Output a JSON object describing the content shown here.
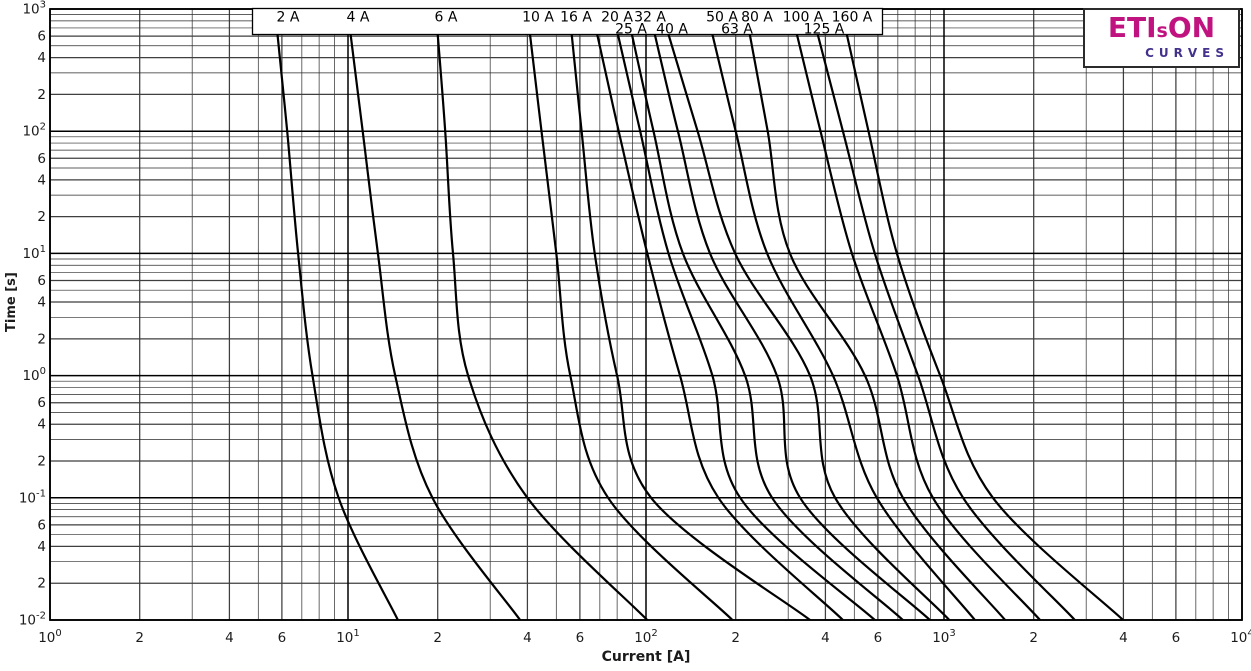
{
  "chart_data": {
    "type": "line",
    "title": "",
    "xlabel": "Current [A]",
    "ylabel": "Time [s]",
    "xscale": "log",
    "yscale": "log",
    "xlim": [
      1,
      10000
    ],
    "ylim": [
      0.01,
      1000
    ],
    "grid": true,
    "legend_position": "top-box",
    "series": [
      {
        "name": "2 A",
        "points_I_t": [
          [
            5.8,
            620
          ],
          [
            6.25,
            100
          ],
          [
            6.8,
            10
          ],
          [
            7.6,
            1
          ],
          [
            9.3,
            0.1
          ],
          [
            14.7,
            0.01
          ]
        ]
      },
      {
        "name": "4 A",
        "points_I_t": [
          [
            10.2,
            620
          ],
          [
            11.2,
            100
          ],
          [
            12.6,
            10
          ],
          [
            14.4,
            1
          ],
          [
            19.2,
            0.1
          ],
          [
            37.8,
            0.01
          ]
        ]
      },
      {
        "name": "6 A",
        "points_I_t": [
          [
            20,
            620
          ],
          [
            21.2,
            100
          ],
          [
            22.5,
            10
          ],
          [
            25.3,
            1
          ],
          [
            40,
            0.1
          ],
          [
            101,
            0.01
          ]
        ]
      },
      {
        "name": "10 A",
        "points_I_t": [
          [
            40.8,
            620
          ],
          [
            44.6,
            100
          ],
          [
            50,
            10
          ],
          [
            55.7,
            1
          ],
          [
            74.6,
            0.1
          ],
          [
            195,
            0.01
          ]
        ]
      },
      {
        "name": "16 A",
        "points_I_t": [
          [
            56.3,
            620
          ],
          [
            60.8,
            100
          ],
          [
            67.3,
            10
          ],
          [
            80,
            1
          ],
          [
            104,
            0.1
          ],
          [
            355,
            0.01
          ]
        ]
      },
      {
        "name": "20 A",
        "points_I_t": [
          [
            68.6,
            620
          ],
          [
            81,
            100
          ],
          [
            101,
            10
          ],
          [
            130,
            1
          ],
          [
            175,
            0.1
          ],
          [
            458,
            0.01
          ]
        ]
      },
      {
        "name": "25 A",
        "points_I_t": [
          [
            80.5,
            620
          ],
          [
            95.6,
            100
          ],
          [
            119,
            10
          ],
          [
            167,
            1
          ],
          [
            207,
            0.1
          ],
          [
            586,
            0.01
          ]
        ]
      },
      {
        "name": "32 A",
        "points_I_t": [
          [
            89.7,
            620
          ],
          [
            106,
            100
          ],
          [
            133,
            10
          ],
          [
            215,
            1
          ],
          [
            265,
            0.1
          ],
          [
            728,
            0.01
          ]
        ]
      },
      {
        "name": "40 A",
        "points_I_t": [
          [
            107,
            620
          ],
          [
            128,
            100
          ],
          [
            164,
            10
          ],
          [
            275,
            1
          ],
          [
            329,
            0.1
          ],
          [
            897,
            0.01
          ]
        ]
      },
      {
        "name": "50 A",
        "points_I_t": [
          [
            119,
            620
          ],
          [
            149,
            100
          ],
          [
            199,
            10
          ],
          [
            355,
            1
          ],
          [
            431,
            0.1
          ],
          [
            1042,
            0.01
          ]
        ]
      },
      {
        "name": "63 A",
        "points_I_t": [
          [
            167,
            620
          ],
          [
            200,
            100
          ],
          [
            255,
            10
          ],
          [
            424,
            1
          ],
          [
            595,
            0.1
          ],
          [
            1270,
            0.01
          ]
        ]
      },
      {
        "name": "80 A",
        "points_I_t": [
          [
            223,
            620
          ],
          [
            256,
            100
          ],
          [
            304,
            10
          ],
          [
            543,
            1
          ],
          [
            728,
            0.1
          ],
          [
            1603,
            0.01
          ]
        ]
      },
      {
        "name": "100 A",
        "points_I_t": [
          [
            321,
            620
          ],
          [
            385,
            100
          ],
          [
            491,
            10
          ],
          [
            695,
            1
          ],
          [
            918,
            0.1
          ],
          [
            2099,
            0.01
          ]
        ]
      },
      {
        "name": "125 A",
        "points_I_t": [
          [
            377,
            620
          ],
          [
            458,
            100
          ],
          [
            586,
            10
          ],
          [
            818,
            1
          ],
          [
            1159,
            0.1
          ],
          [
            2748,
            0.01
          ]
        ]
      },
      {
        "name": "160 A",
        "points_I_t": [
          [
            472,
            620
          ],
          [
            558,
            100
          ],
          [
            695,
            10
          ],
          [
            971,
            1
          ],
          [
            1459,
            0.1
          ],
          [
            3990,
            0.01
          ]
        ]
      }
    ]
  },
  "curve_labels": [
    {
      "text": "2 A",
      "x": 288,
      "row": 1
    },
    {
      "text": "4 A",
      "x": 358,
      "row": 1
    },
    {
      "text": "6 A",
      "x": 446,
      "row": 1
    },
    {
      "text": "10 A",
      "x": 538,
      "row": 1
    },
    {
      "text": "16 A",
      "x": 576,
      "row": 1
    },
    {
      "text": "20 A",
      "x": 617,
      "row": 1
    },
    {
      "text": "25 A",
      "x": 631,
      "row": 2
    },
    {
      "text": "32 A",
      "x": 650,
      "row": 1
    },
    {
      "text": "40 A",
      "x": 672,
      "row": 2
    },
    {
      "text": "50 A",
      "x": 722,
      "row": 1
    },
    {
      "text": "63 A",
      "x": 737,
      "row": 2
    },
    {
      "text": "80 A",
      "x": 757,
      "row": 1
    },
    {
      "text": "100 A",
      "x": 803,
      "row": 1
    },
    {
      "text": "125 A",
      "x": 824,
      "row": 2
    },
    {
      "text": "160 A",
      "x": 852,
      "row": 1
    }
  ],
  "x_ticks": [
    {
      "base": "10",
      "exp": "0",
      "v": 1
    },
    {
      "t": "2",
      "v": 2
    },
    {
      "t": "4",
      "v": 4
    },
    {
      "t": "6",
      "v": 6
    },
    {
      "base": "10",
      "exp": "1",
      "v": 10
    },
    {
      "t": "2",
      "v": 20
    },
    {
      "t": "4",
      "v": 40
    },
    {
      "t": "6",
      "v": 60
    },
    {
      "base": "10",
      "exp": "2",
      "v": 100
    },
    {
      "t": "2",
      "v": 200
    },
    {
      "t": "4",
      "v": 400
    },
    {
      "t": "6",
      "v": 600
    },
    {
      "base": "10",
      "exp": "3",
      "v": 1000
    },
    {
      "t": "2",
      "v": 2000
    },
    {
      "t": "4",
      "v": 4000
    },
    {
      "t": "6",
      "v": 6000
    },
    {
      "base": "10",
      "exp": "4",
      "v": 10000
    }
  ],
  "y_ticks": [
    {
      "base": "10",
      "exp": "3",
      "v": 1000
    },
    {
      "t": "6",
      "v": 600
    },
    {
      "t": "4",
      "v": 400
    },
    {
      "t": "2",
      "v": 200
    },
    {
      "base": "10",
      "exp": "2",
      "v": 100
    },
    {
      "t": "6",
      "v": 60
    },
    {
      "t": "4",
      "v": 40
    },
    {
      "t": "2",
      "v": 20
    },
    {
      "base": "10",
      "exp": "1",
      "v": 10
    },
    {
      "t": "6",
      "v": 6
    },
    {
      "t": "4",
      "v": 4
    },
    {
      "t": "2",
      "v": 2
    },
    {
      "base": "10",
      "exp": "0",
      "v": 1
    },
    {
      "t": "6",
      "v": 0.6
    },
    {
      "t": "4",
      "v": 0.4
    },
    {
      "t": "2",
      "v": 0.2
    },
    {
      "base": "10",
      "exp": "-1",
      "v": 0.1
    },
    {
      "t": "6",
      "v": 0.06
    },
    {
      "t": "4",
      "v": 0.04
    },
    {
      "t": "2",
      "v": 0.02
    },
    {
      "base": "10",
      "exp": "-2",
      "v": 0.01
    }
  ],
  "logo": {
    "part1": "ETI",
    "part2": "s",
    "part3": "ON",
    "line2": "CURVES",
    "magenta": "#c0137f",
    "purple": "#44318c"
  },
  "colors": {
    "curve": "#000000",
    "grid_major": "#000000",
    "grid_mid": "#3f3f3f",
    "grid_minor": "#2a2a2a",
    "frame": "#000000",
    "background": "#ffffff"
  }
}
